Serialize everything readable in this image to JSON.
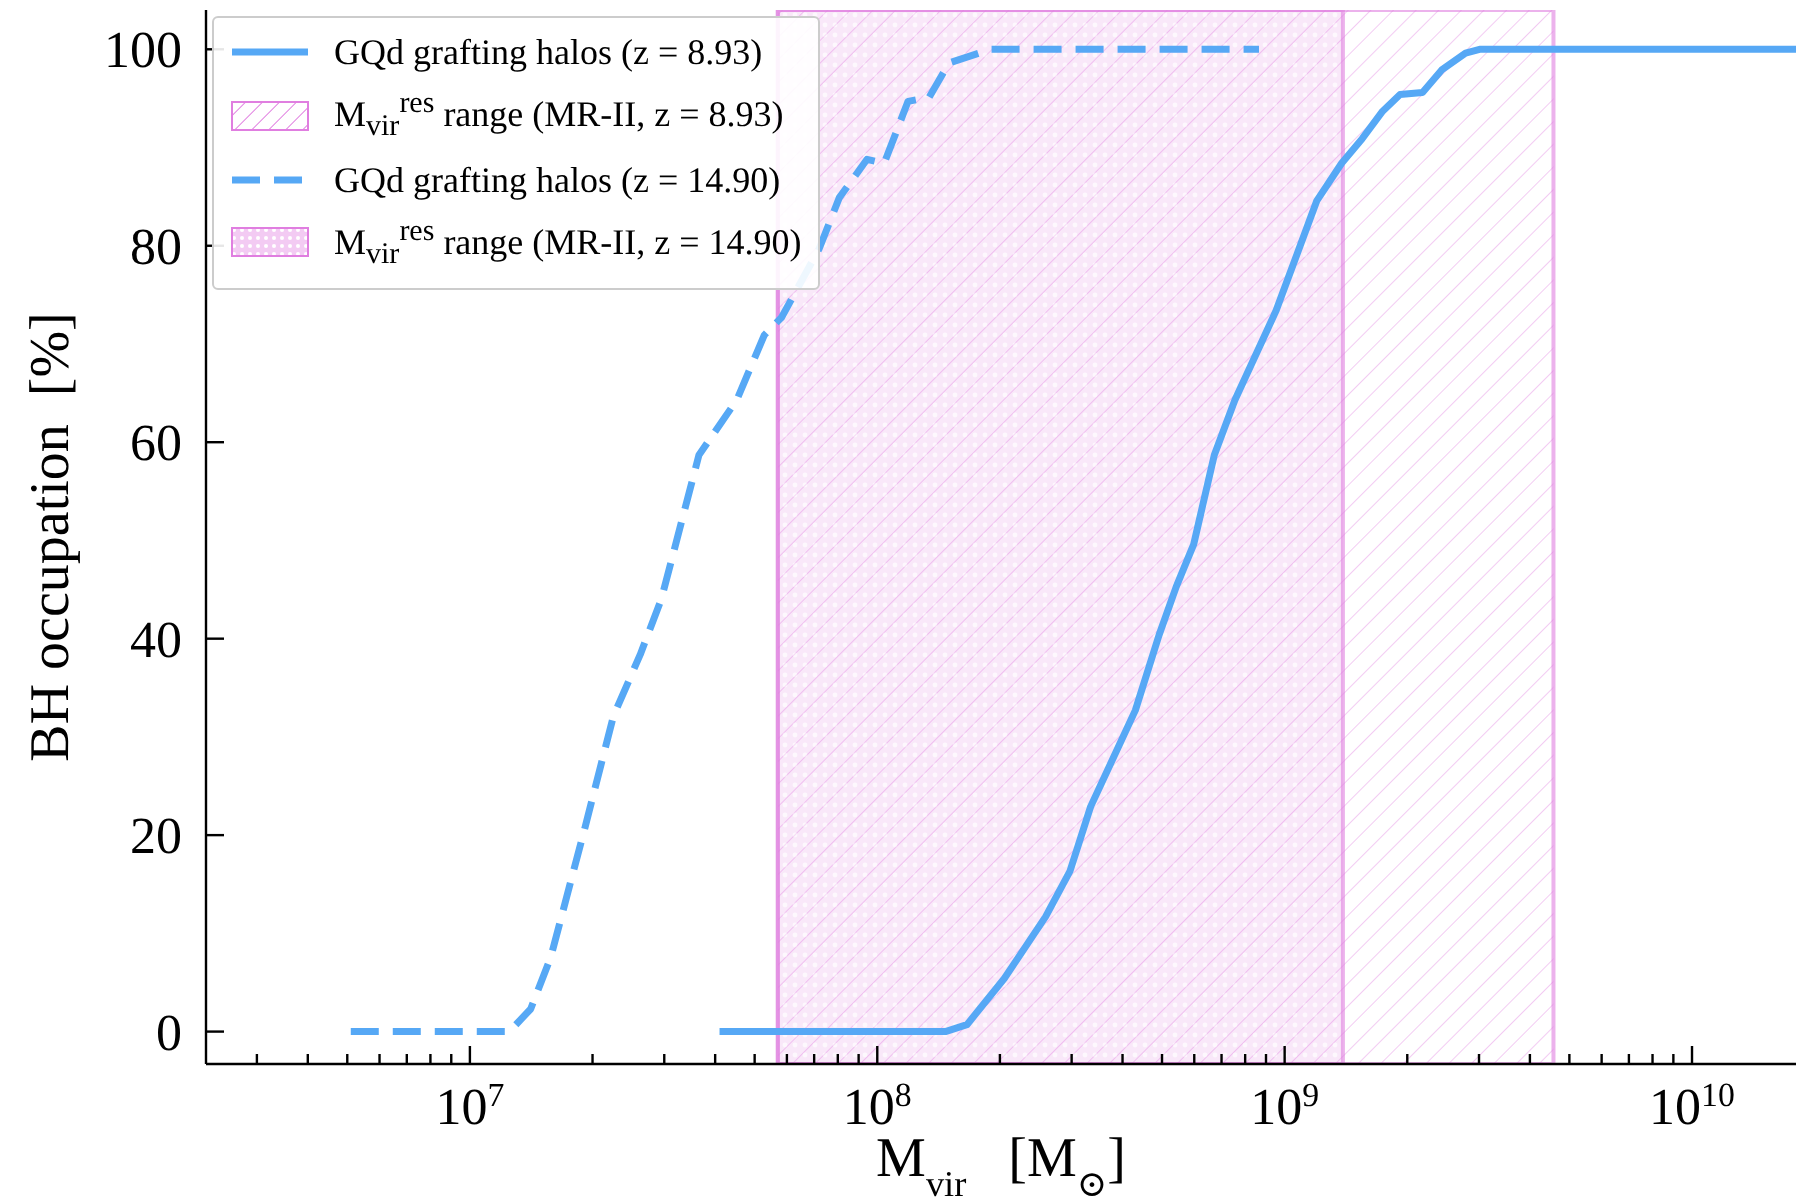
{
  "chart_data": {
    "type": "line",
    "xlabel": "M$_{vir}$   [M$_{⊙}$]",
    "ylabel": "BH occupation  [%]",
    "log": "x",
    "legend": "top left",
    "xlim": [
      2250000,
      18000000000
    ],
    "ylim": [
      -3.3,
      104
    ],
    "xticks": [
      {
        "value": 3000000,
        "label": null
      },
      {
        "value": 4000000,
        "label": null
      },
      {
        "value": 5000000,
        "label": null
      },
      {
        "value": 6000000,
        "label": null
      },
      {
        "value": 7000000,
        "label": null
      },
      {
        "value": 8000000,
        "label": null
      },
      {
        "value": 9000000,
        "label": null
      },
      {
        "value": 10000000,
        "label": "10$^{7}$"
      },
      {
        "value": 20000000,
        "label": null
      },
      {
        "value": 30000000,
        "label": null
      },
      {
        "value": 40000000,
        "label": null
      },
      {
        "value": 50000000,
        "label": null
      },
      {
        "value": 60000000,
        "label": null
      },
      {
        "value": 70000000,
        "label": null
      },
      {
        "value": 80000000,
        "label": null
      },
      {
        "value": 90000000,
        "label": null
      },
      {
        "value": 100000000,
        "label": "10$^{8}$"
      },
      {
        "value": 200000000,
        "label": null
      },
      {
        "value": 300000000,
        "label": null
      },
      {
        "value": 400000000,
        "label": null
      },
      {
        "value": 500000000,
        "label": null
      },
      {
        "value": 600000000,
        "label": null
      },
      {
        "value": 700000000,
        "label": null
      },
      {
        "value": 800000000,
        "label": null
      },
      {
        "value": 900000000,
        "label": null
      },
      {
        "value": 1000000000,
        "label": "10$^{9}$"
      },
      {
        "value": 2000000000,
        "label": null
      },
      {
        "value": 3000000000,
        "label": null
      },
      {
        "value": 4000000000,
        "label": null
      },
      {
        "value": 5000000000,
        "label": null
      },
      {
        "value": 6000000000,
        "label": null
      },
      {
        "value": 7000000000,
        "label": null
      },
      {
        "value": 8000000000,
        "label": null
      },
      {
        "value": 9000000000,
        "label": null
      },
      {
        "value": 10000000000,
        "label": "10$^{10}$"
      }
    ],
    "yticks": [
      0,
      20,
      40,
      60,
      80,
      100
    ],
    "bands": [
      {
        "axis": "x",
        "from": 57000000,
        "to": 4570000000,
        "label": "M$_{vir}$$^{res}$ range (MR-II, z = 8.93)",
        "color": "#e07ee0"
      },
      {
        "axis": "x",
        "from": 57000000,
        "to": 1390000000,
        "label": "M$_{vir}$$^{res}$ range (MR-II, z = 14.90)",
        "color": "#e07ee0"
      }
    ],
    "series": [
      {
        "name": "GQd grafting halos (z = 8.93)",
        "color": "#56a8f5",
        "line_style": "solid",
        "x": [
          41000000,
          147000000,
          166000000,
          205000000,
          259000000,
          297000000,
          334000000,
          430000000,
          492000000,
          542000000,
          598000000,
          672000000,
          755000000,
          953000000,
          1200000000,
          1380000000,
          1550000000,
          1740000000,
          1920000000,
          2180000000,
          2430000000,
          2780000000,
          3010000000,
          18000000000
        ],
        "values": [
          0,
          0,
          0.7,
          5.4,
          11.7,
          16.3,
          22.9,
          32.7,
          40.4,
          45.3,
          49.6,
          58.7,
          64.3,
          73.4,
          84.6,
          88.4,
          90.9,
          93.7,
          95.4,
          95.6,
          97.9,
          99.6,
          100,
          100
        ]
      },
      {
        "name": "GQd grafting halos (z = 14.90)",
        "color": "#56a8f5",
        "line_style": "dashed",
        "x": [
          5100000,
          12500000,
          14100000,
          15800000,
          19200000,
          22500000,
          26200000,
          29500000,
          36500000,
          45200000,
          52800000,
          58200000,
          72000000,
          80700000,
          94400000,
          104000000,
          119000000,
          134000000,
          150000000,
          190000000,
          865000000
        ],
        "values": [
          0,
          0,
          2.3,
          7.6,
          20.9,
          32.1,
          38.4,
          44,
          58.7,
          64.3,
          70.9,
          72.7,
          79.7,
          84.9,
          88.8,
          88.4,
          94.7,
          95.1,
          98.6,
          100,
          100
        ]
      }
    ]
  }
}
